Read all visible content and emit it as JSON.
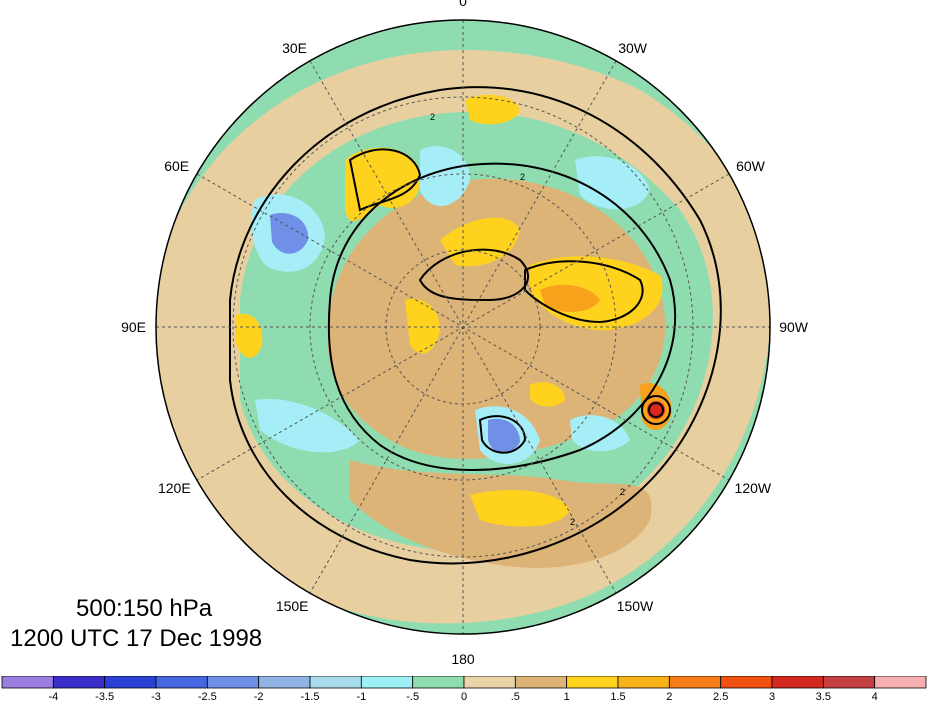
{
  "map": {
    "longitude_labels": [
      {
        "text": "0",
        "angle_deg": 0
      },
      {
        "text": "30W",
        "angle_deg": 30
      },
      {
        "text": "60W",
        "angle_deg": 60
      },
      {
        "text": "90W",
        "angle_deg": 90
      },
      {
        "text": "120W",
        "angle_deg": 120
      },
      {
        "text": "150W",
        "angle_deg": 150
      },
      {
        "text": "180",
        "angle_deg": 180
      },
      {
        "text": "150E",
        "angle_deg": 210
      },
      {
        "text": "120E",
        "angle_deg": 240
      },
      {
        "text": "90E",
        "angle_deg": 270
      },
      {
        "text": "60E",
        "angle_deg": 300
      },
      {
        "text": "30E",
        "angle_deg": 330
      }
    ],
    "contour_label": "2",
    "colors": {
      "ocean_green": "#8fdcb0",
      "land_tan": "#e8cfa0",
      "tan_mid": "#ddb478",
      "yellow": "#ffd21e",
      "orange": "#f7a21a",
      "red": "#d9281e",
      "light_cyan": "#a6eef7",
      "light_blue": "#8cc6ec",
      "mid_blue": "#6f90e6",
      "dark_blue": "#3f58d6"
    }
  },
  "title": {
    "line1": "500:150 hPa",
    "line2": "1200 UTC 17 Dec 1998"
  },
  "colorbar": {
    "labels": [
      "-4",
      "-3.5",
      "-3",
      "-2.5",
      "-2",
      "-1.5",
      "-1",
      "-.5",
      "0",
      ".5",
      "1",
      "1.5",
      "2",
      "2.5",
      "3",
      "3.5",
      "4"
    ],
    "colors": [
      "#9b7ee0",
      "#3a2ec8",
      "#2b41d6",
      "#4766e2",
      "#6f8fe6",
      "#90b4e4",
      "#a8dcec",
      "#9ef0f7",
      "#8fdcb0",
      "#e9d5a8",
      "#ddb478",
      "#ffd21e",
      "#f7b21a",
      "#f77d18",
      "#f25010",
      "#d3281e",
      "#c44040",
      "#f7b0b0"
    ]
  }
}
